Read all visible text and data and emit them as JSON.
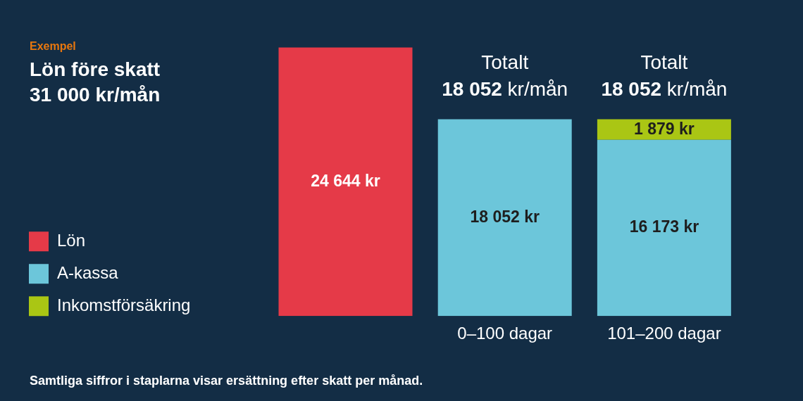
{
  "chart_data": {
    "type": "bar",
    "subtitle": "Exempel",
    "title": "Lön före skatt 31 000 kr/mån",
    "annotations": [
      "Samtliga siffror i staplarna visar ersättning efter skatt per månad."
    ],
    "categories": [
      null,
      "0–100 dagar",
      "101–200 dagar"
    ],
    "stacked": true,
    "series": [
      {
        "name": "Lön",
        "color": "#e53a48",
        "values": [
          24644,
          null,
          null
        ],
        "value_labels": [
          "24 644 kr",
          null,
          null
        ]
      },
      {
        "name": "A-kassa",
        "color": "#6cc6da",
        "values": [
          null,
          18052,
          16173
        ],
        "value_labels": [
          null,
          "18 052 kr",
          "16 173 kr"
        ]
      },
      {
        "name": "Inkomstförsäkring",
        "color": "#aac614",
        "values": [
          null,
          null,
          1879
        ],
        "value_labels": [
          null,
          null,
          "1 879 kr"
        ]
      }
    ],
    "totals": [
      null,
      "Totalt 18 052 kr/mån",
      "Totalt 18 052 kr/mån"
    ],
    "legend": "left",
    "tick_labels": "x"
  }
}
